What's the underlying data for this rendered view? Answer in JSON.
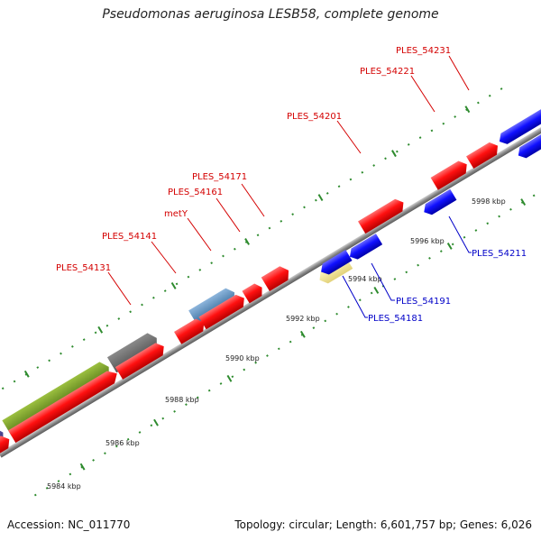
{
  "title": "Pseudomonas aeruginosa LESB58, complete genome",
  "accession": "Accession: NC_011770",
  "summary": "Topology: circular; Length: 6,601,757 bp; Genes: 6,026",
  "colors": {
    "forward_gene": "#ff1a1a",
    "reverse_gene": "#1a1aff",
    "rna_gene": "#4682b4",
    "highlight_gene": "#f5eaa0",
    "olive_gene": "#6b8e23",
    "gray_gene": "#696969",
    "purple_gene": "#483d8b",
    "tick": "#2e8b2e",
    "axis": "#888888"
  },
  "ticks": [
    {
      "label": "5984 kbp"
    },
    {
      "label": "5986 kbp"
    },
    {
      "label": "5988 kbp"
    },
    {
      "label": "5990 kbp"
    },
    {
      "label": "5992 kbp"
    },
    {
      "label": "5994 kbp"
    },
    {
      "label": "5996 kbp"
    },
    {
      "label": "5998 kbp"
    }
  ],
  "gene_labels": {
    "ples_54131": "PLES_54131",
    "ples_54141": "PLES_54141",
    "metY": "metY",
    "ples_54161": "PLES_54161",
    "ples_54171": "PLES_54171",
    "ples_54201": "PLES_54201",
    "ples_54221": "PLES_54221",
    "ples_54231": "PLES_54231",
    "ples_54181": "PLES_54181",
    "ples_54191": "PLES_54191",
    "ples_54211": "PLES_54211"
  }
}
